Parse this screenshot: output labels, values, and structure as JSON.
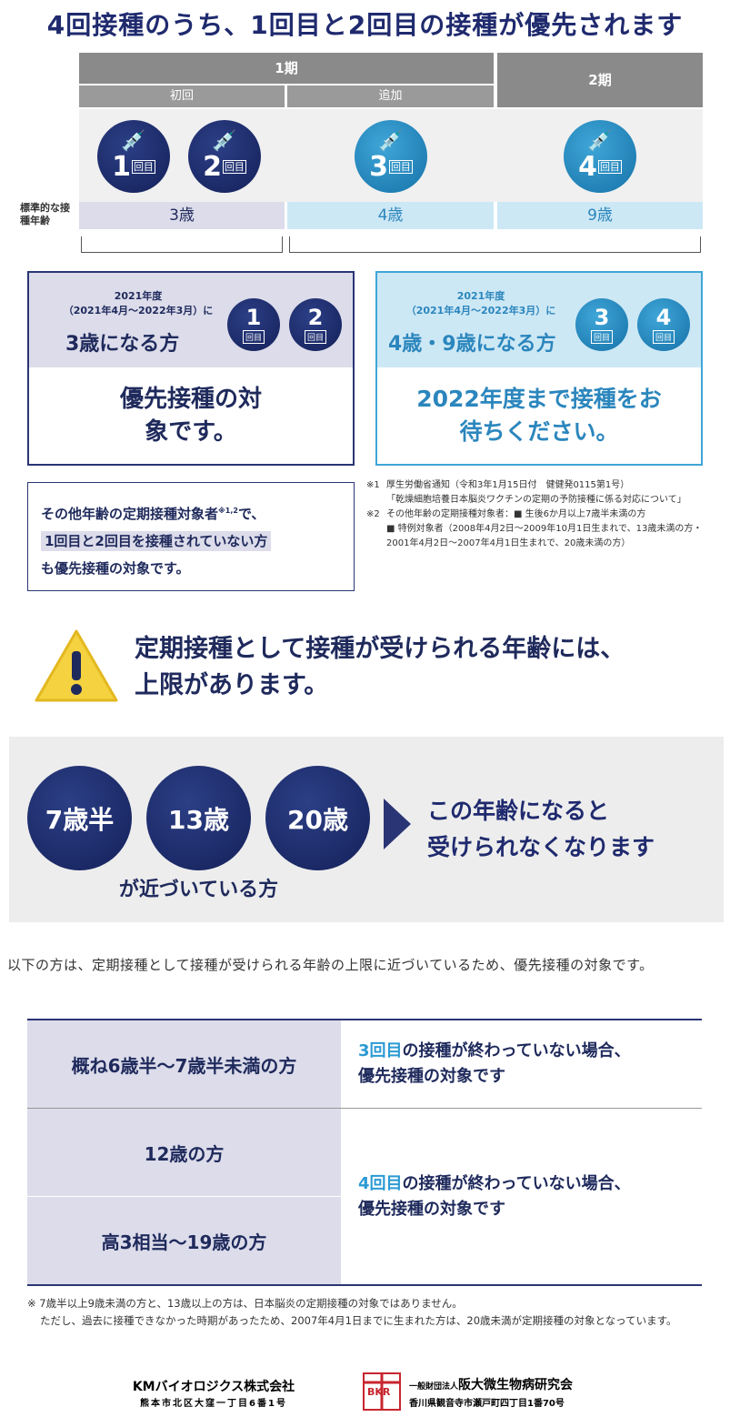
{
  "title": "4回接種のうち、1回目と2回目の接種が優先されます",
  "schedule": {
    "phase1": "1期",
    "phase2": "2期",
    "initial": "初回",
    "booster": "追加",
    "doses": [
      {
        "num": "1",
        "unit": "回目"
      },
      {
        "num": "2",
        "unit": "回目"
      },
      {
        "num": "3",
        "unit": "回目"
      },
      {
        "num": "4",
        "unit": "回目"
      }
    ],
    "age_label": "標準的な接種年齢",
    "ages": [
      "3歳",
      "4歳",
      "9歳"
    ]
  },
  "box_left": {
    "year": "2021年度",
    "range": "（2021年4月～2022年3月）に",
    "target": "3歳になる方",
    "doses": [
      "1",
      "2"
    ],
    "unit": "回目",
    "message": "優先接種の対象です。"
  },
  "box_right": {
    "year": "2021年度",
    "range": "（2021年4月～2022年3月）に",
    "target": "4歳・9歳になる方",
    "doses": [
      "3",
      "4"
    ],
    "unit": "回目",
    "message": "2022年度まで接種をお待ちください。"
  },
  "other_box": {
    "line1": "その他年齢の定期接種対象者",
    "sup": "※1,2",
    "line1_end": "で、",
    "line2": "1回目と2回目を接種されていない方",
    "line3": "も優先接種の対象です。"
  },
  "notes": {
    "n1_label": "※1",
    "n1": "厚生労働省通知（令和3年1月15日付　健健発0115第1号）",
    "n1b": "「乾燥細胞培養日本脳炎ワクチンの定期の予防接種に係る対応について」",
    "n2_label": "※2",
    "n2": "その他年齢の定期接種対象者：■ 生後6か月以上7歳半未満の方",
    "n2b": "■ 特例対象者（2008年4月2日～2009年10月1日生まれで、13歳未満の方・2001年4月2日～2007年4月1日生まれで、20歳未満の方）"
  },
  "warning": {
    "line1": "定期接種として接種が受けられる年齢には、",
    "line2": "上限があります。"
  },
  "age_limit": {
    "ages": [
      "7歳半",
      "13歳",
      "20歳"
    ],
    "approach": "が近づいている方",
    "result1": "この年齢になると",
    "result2": "受けられなくなります"
  },
  "intro": "以下の方は、定期接種として接種が受けられる年齢の上限に近づいているため、優先接種の対象です。",
  "table": {
    "row1_left": "概ね6歳半～7歳半未満の方",
    "row1_hl": "3回目",
    "row1_text": "の接種が終わっていない場合、",
    "row1_text2": "優先接種の対象です",
    "row2_left": "12歳の方",
    "row3_left": "高3相当～19歳の方",
    "row23_hl": "4回目",
    "row23_text": "の接種が終わっていない場合、",
    "row23_text2": "優先接種の対象です"
  },
  "footnote": {
    "line1": "※ 7歳半以上9歳未満の方と、13歳以上の方は、日本脳炎の定期接種の対象ではありません。",
    "line2": "ただし、過去に接種できなかった時期があったため、2007年4月1日までに生まれた方は、20歳未満が定期接種の対象となっています。"
  },
  "footer": {
    "company1": "KMバイオロジクス株式会社",
    "address1": "熊本市北区大窪一丁目6番1号",
    "logo_letters": "BKR",
    "org_prefix": "一般財団法人",
    "company2": "阪大微生物病研究会",
    "address2": "香川県観音寺市瀬戸町四丁目1番70号"
  }
}
